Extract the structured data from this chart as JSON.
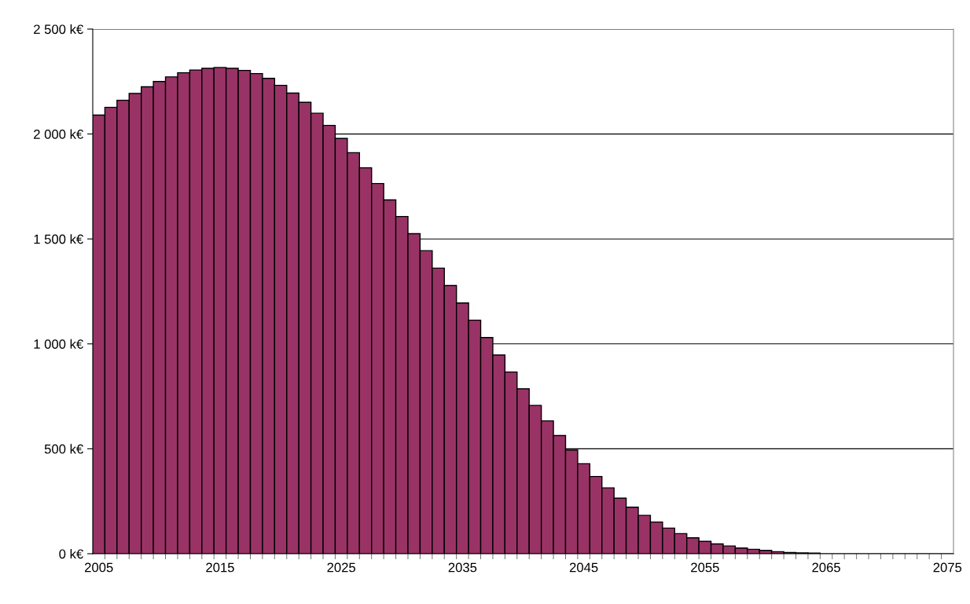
{
  "chart_data": {
    "type": "bar",
    "categories": [
      "2005",
      null,
      null,
      null,
      null,
      null,
      null,
      null,
      null,
      null,
      "2015",
      null,
      null,
      null,
      null,
      null,
      null,
      null,
      null,
      null,
      "2025",
      null,
      null,
      null,
      null,
      null,
      null,
      null,
      null,
      null,
      "2035",
      null,
      null,
      null,
      null,
      null,
      null,
      null,
      null,
      null,
      "2045",
      null,
      null,
      null,
      null,
      null,
      null,
      null,
      null,
      null,
      "2055",
      null,
      null,
      null,
      null,
      null,
      null,
      null,
      null,
      null,
      "2065",
      null,
      null,
      null,
      null,
      null,
      null,
      null,
      null,
      null,
      "2075"
    ],
    "values": [
      2090,
      2127,
      2161,
      2193,
      2225,
      2250,
      2272,
      2292,
      2305,
      2313,
      2317,
      2313,
      2303,
      2288,
      2265,
      2232,
      2195,
      2151,
      2099,
      2041,
      1979,
      1911,
      1839,
      1764,
      1686,
      1607,
      1525,
      1444,
      1361,
      1278,
      1195,
      1113,
      1030,
      947,
      866,
      786,
      707,
      633,
      563,
      494,
      429,
      368,
      314,
      265,
      222,
      183,
      151,
      122,
      96,
      76,
      59,
      47,
      37,
      27,
      21,
      16,
      10,
      6,
      4,
      3,
      null,
      null,
      null,
      null,
      null,
      null,
      null,
      null,
      null,
      null,
      null
    ],
    "color": "#993366",
    "ylim": [
      0,
      2500
    ],
    "yticks": [
      {
        "value": 0,
        "label": "0 k€"
      },
      {
        "value": 500,
        "label": "500 k€"
      },
      {
        "value": 1000,
        "label": "1 000 k€"
      },
      {
        "value": 1500,
        "label": "1 500 k€"
      },
      {
        "value": 2000,
        "label": "2 000 k€"
      },
      {
        "value": 2500,
        "label": "2 500 k€"
      }
    ],
    "grid": "y"
  }
}
